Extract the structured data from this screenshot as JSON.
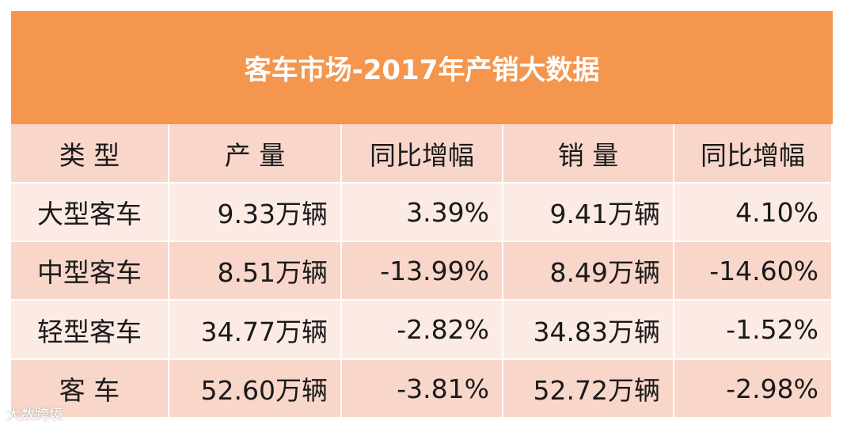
{
  "header": {
    "title": "客车市场-2017年产销大数据"
  },
  "table": {
    "columns": [
      "类 型",
      "产 量",
      "同比增幅",
      "销 量",
      "同比增幅"
    ],
    "rows": [
      [
        "大型客车",
        "9.33万辆",
        "3.39%",
        "9.41万辆",
        "4.10%"
      ],
      [
        "中型客车",
        "8.51万辆",
        "-13.99%",
        "8.49万辆",
        "-14.60%"
      ],
      [
        "轻型客车",
        "34.77万辆",
        "-2.82%",
        "34.83万辆",
        "-1.52%"
      ],
      [
        "客 车",
        "52.60万辆",
        "-3.81%",
        "52.72万辆",
        "-2.98%"
      ]
    ]
  },
  "watermark": "大数跨境"
}
